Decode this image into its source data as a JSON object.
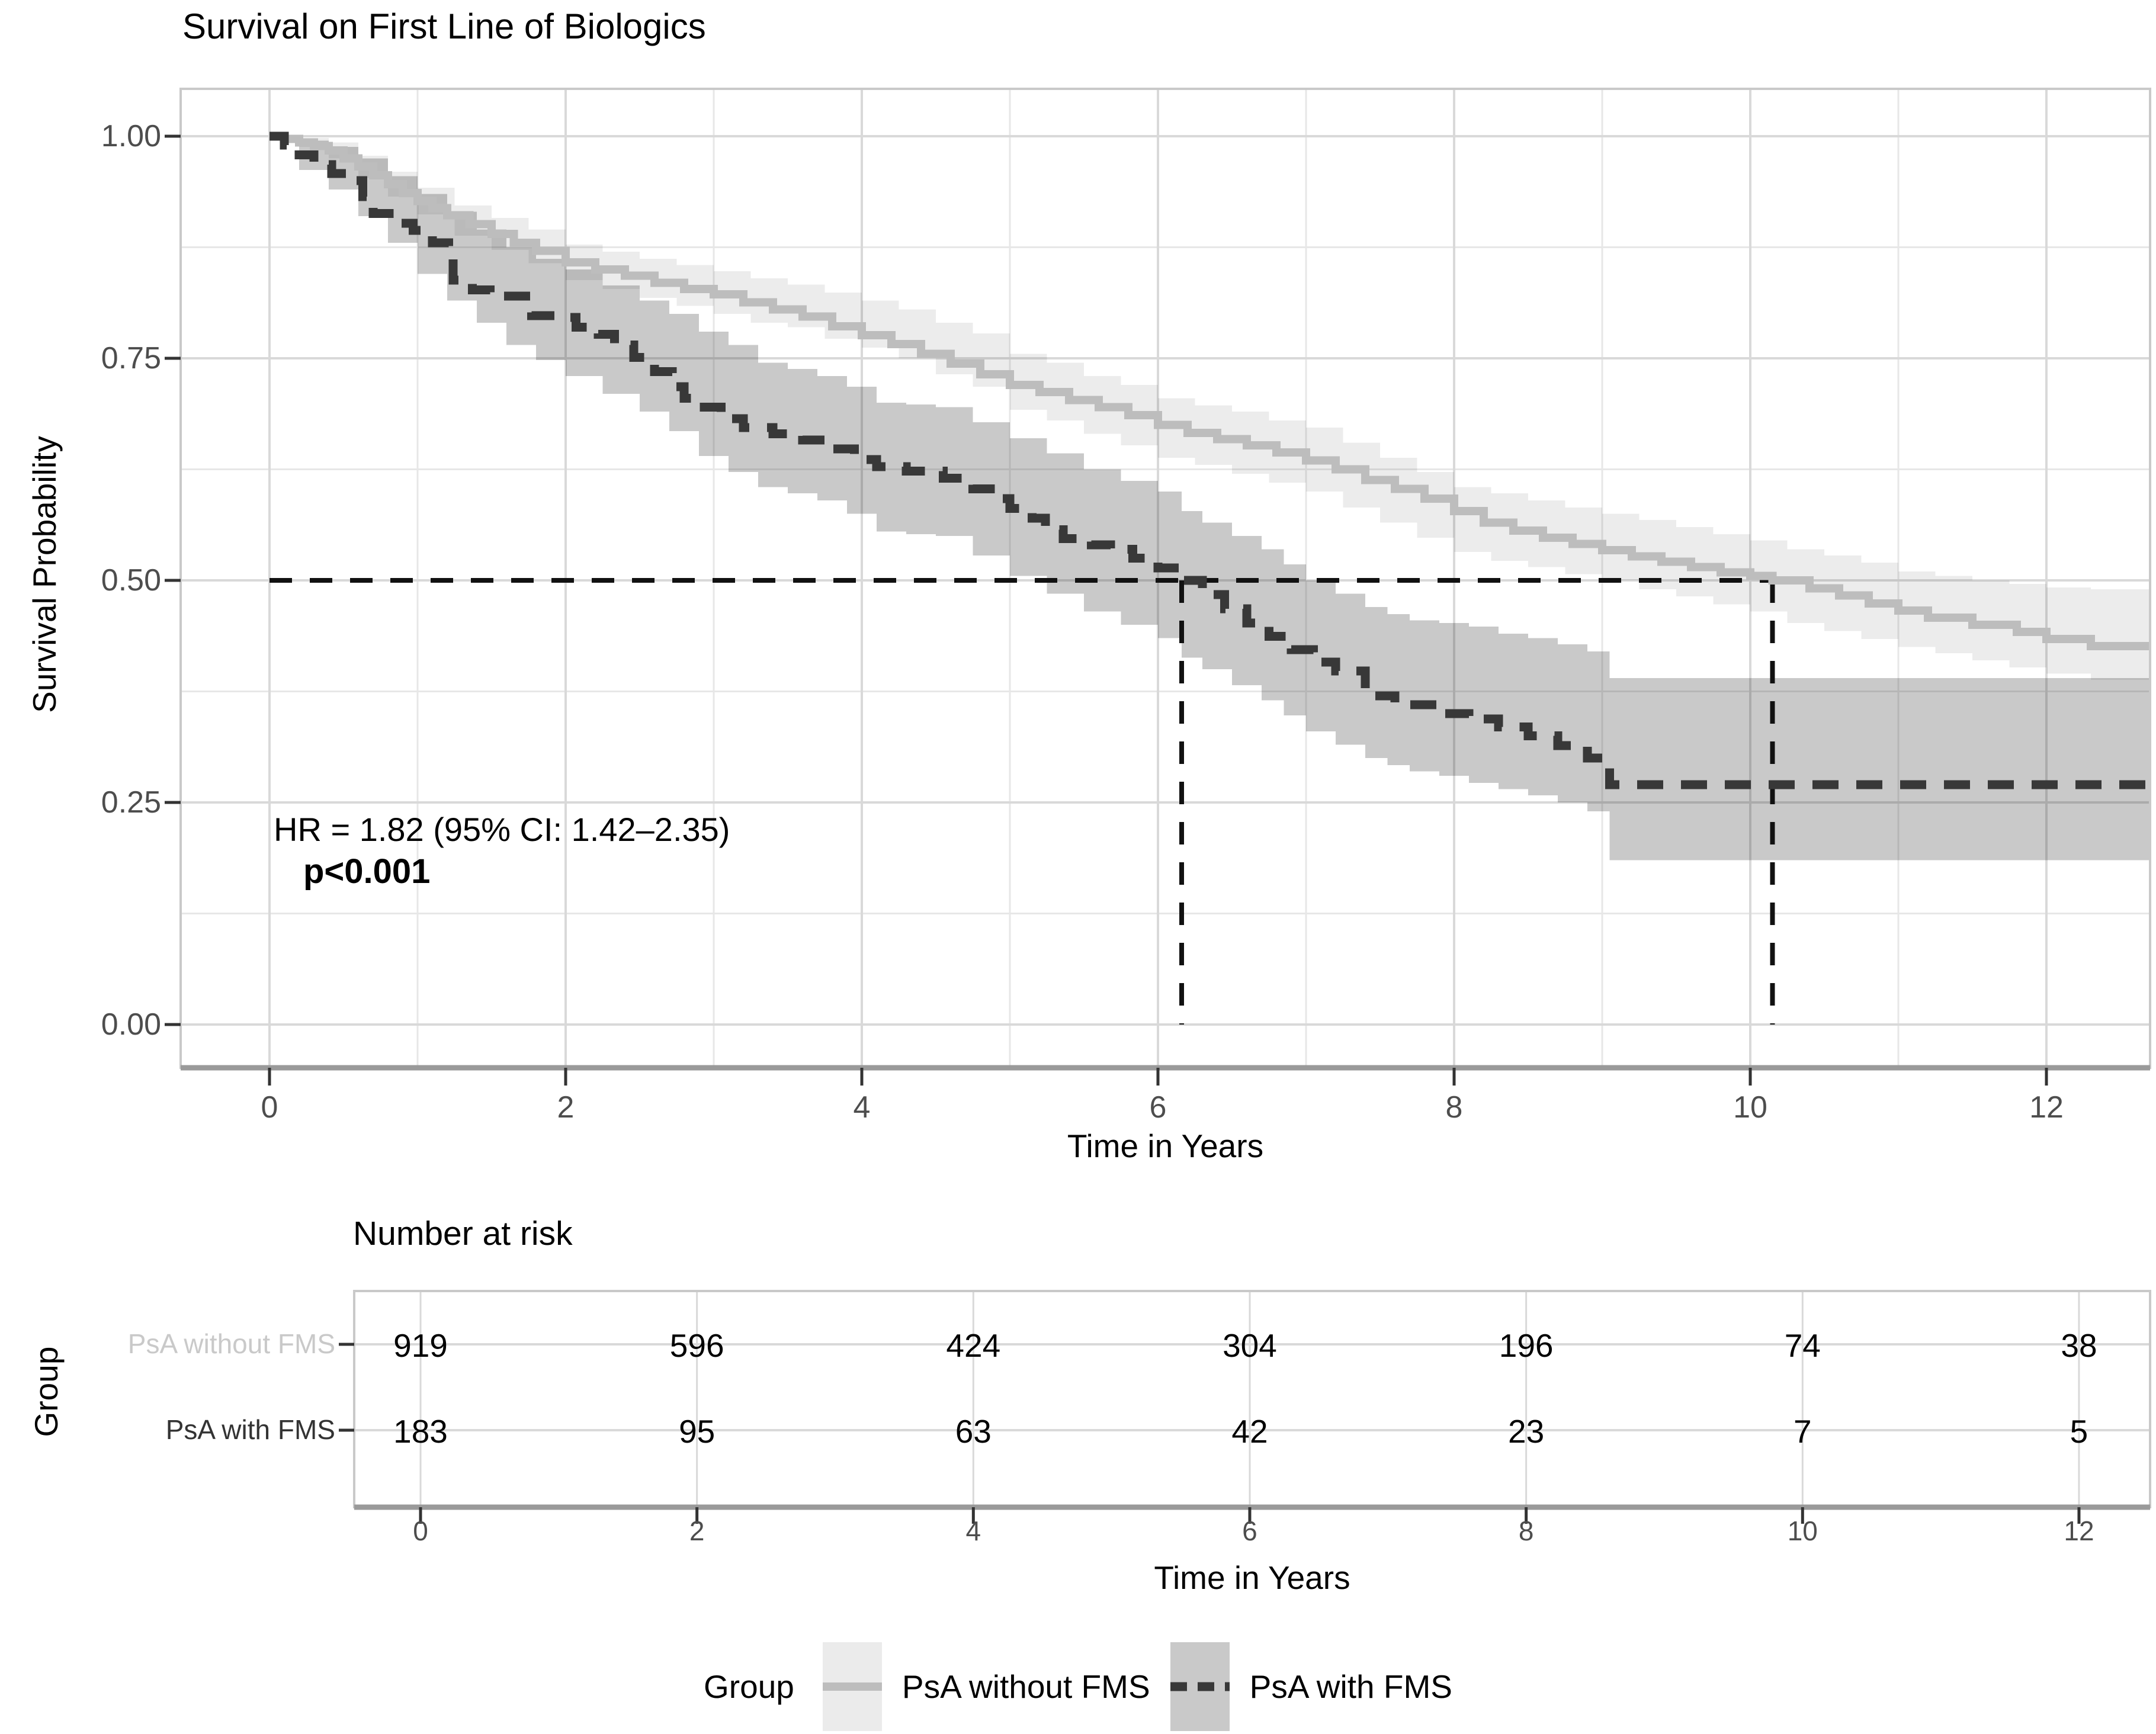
{
  "title": "Survival on First Line of Biologics",
  "axes": {
    "y_label": "Survival Probability",
    "x_label": "Time in Years",
    "y_tick_labels": [
      "1.00",
      "0.75",
      "0.50",
      "0.25",
      "0.00"
    ],
    "x_tick_labels": [
      "0",
      "2",
      "4",
      "6",
      "8",
      "10",
      "12"
    ]
  },
  "annotation": {
    "hazard_ratio": "HR = 1.82 (95% CI: 1.42–2.35)",
    "p_value": "p<0.001"
  },
  "risk_table": {
    "title": "Number at risk",
    "group_axis_label": "Group",
    "x_label": "Time in Years",
    "x_tick_labels": [
      "0",
      "2",
      "4",
      "6",
      "8",
      "10",
      "12"
    ],
    "rows": [
      {
        "label": "PsA without FMS",
        "label_color": "#c9c9c9",
        "values": [
          "919",
          "596",
          "424",
          "304",
          "196",
          "74",
          "38"
        ]
      },
      {
        "label": "PsA with FMS",
        "label_color": "#333333",
        "values": [
          "183",
          "95",
          "63",
          "42",
          "23",
          "7",
          "5"
        ]
      }
    ]
  },
  "legend": {
    "title": "Group",
    "items": [
      {
        "label": "PsA without FMS",
        "line_style": "solid"
      },
      {
        "label": "PsA with FMS",
        "line_style": "dashed"
      }
    ]
  },
  "colors": {
    "group1_line": "#bdbdbd",
    "group1_band": "#ebebeb",
    "group2_line": "#383838",
    "group2_band": "#c9c9c9",
    "grid_major": "#d9d9d9",
    "grid_minor": "#e7e7e7",
    "panel_border": "#c9c9c9",
    "axis_line": "#9a9a9a",
    "tick_label": "#4d4d4d",
    "median_line": "#111111"
  },
  "chart_data": {
    "type": "line",
    "subtype": "kaplan-meier-step",
    "title": "Survival on First Line of Biologics",
    "xlabel": "Time in Years",
    "ylabel": "Survival Probability",
    "xlim": [
      0,
      12.7
    ],
    "ylim": [
      0,
      1
    ],
    "x_ticks": [
      0,
      2,
      4,
      6,
      8,
      10,
      12
    ],
    "y_ticks": [
      0,
      0.25,
      0.5,
      0.75,
      1
    ],
    "x_minor_ticks": [
      1,
      3,
      5,
      7,
      9,
      11
    ],
    "y_minor_ticks": [
      0.125,
      0.375,
      0.625,
      0.875
    ],
    "grid": true,
    "legend_position": "bottom",
    "hazard_ratio_text": "HR = 1.82 (95% CI: 1.42–2.35)",
    "p_value_text": "p<0.001",
    "median_survival": {
      "psa_with_fms_years": 6.16,
      "psa_without_fms_years": 10.15,
      "probability": 0.5
    },
    "series": [
      {
        "name": "PsA without FMS",
        "style": "solid",
        "color": "#bdbdbd",
        "band_color": "rgba(0,0,0,0.075)",
        "steps": [
          [
            0,
            1.0
          ],
          [
            0.1,
            0.997
          ],
          [
            0.2,
            0.993
          ],
          [
            0.3,
            0.989
          ],
          [
            0.4,
            0.984
          ],
          [
            0.5,
            0.975
          ],
          [
            0.6,
            0.966
          ],
          [
            0.7,
            0.956
          ],
          [
            0.8,
            0.946
          ],
          [
            0.9,
            0.936
          ],
          [
            1.0,
            0.927
          ],
          [
            1.1,
            0.919
          ],
          [
            1.2,
            0.911
          ],
          [
            1.35,
            0.901
          ],
          [
            1.5,
            0.89
          ],
          [
            1.65,
            0.88
          ],
          [
            1.8,
            0.871
          ],
          [
            2.0,
            0.858
          ],
          [
            2.2,
            0.85
          ],
          [
            2.4,
            0.843
          ],
          [
            2.6,
            0.835
          ],
          [
            2.8,
            0.828
          ],
          [
            3.0,
            0.822
          ],
          [
            3.2,
            0.813
          ],
          [
            3.4,
            0.805
          ],
          [
            3.6,
            0.797
          ],
          [
            3.8,
            0.786
          ],
          [
            4.0,
            0.776
          ],
          [
            4.2,
            0.766
          ],
          [
            4.4,
            0.755
          ],
          [
            4.6,
            0.744
          ],
          [
            4.8,
            0.732
          ],
          [
            5.0,
            0.72
          ],
          [
            5.2,
            0.712
          ],
          [
            5.4,
            0.703
          ],
          [
            5.6,
            0.695
          ],
          [
            5.8,
            0.686
          ],
          [
            6.0,
            0.675
          ],
          [
            6.2,
            0.666
          ],
          [
            6.4,
            0.659
          ],
          [
            6.6,
            0.652
          ],
          [
            6.8,
            0.644
          ],
          [
            7.0,
            0.635
          ],
          [
            7.2,
            0.625
          ],
          [
            7.4,
            0.613
          ],
          [
            7.6,
            0.603
          ],
          [
            7.8,
            0.592
          ],
          [
            8.0,
            0.578
          ],
          [
            8.2,
            0.565
          ],
          [
            8.4,
            0.556
          ],
          [
            8.6,
            0.548
          ],
          [
            8.8,
            0.541
          ],
          [
            9.0,
            0.534
          ],
          [
            9.2,
            0.527
          ],
          [
            9.4,
            0.521
          ],
          [
            9.6,
            0.515
          ],
          [
            9.8,
            0.509
          ],
          [
            10.0,
            0.505
          ],
          [
            10.15,
            0.5
          ],
          [
            10.4,
            0.491
          ],
          [
            10.6,
            0.483
          ],
          [
            10.8,
            0.474
          ],
          [
            11.0,
            0.466
          ],
          [
            11.2,
            0.458
          ],
          [
            11.5,
            0.45
          ],
          [
            11.8,
            0.442
          ],
          [
            12.0,
            0.434
          ],
          [
            12.3,
            0.426
          ]
        ],
        "ci": [
          [
            0,
            1.0,
            1.0
          ],
          [
            0.2,
            0.998,
            0.988
          ],
          [
            0.4,
            0.993,
            0.975
          ],
          [
            0.6,
            0.978,
            0.953
          ],
          [
            0.8,
            0.96,
            0.932
          ],
          [
            1.0,
            0.942,
            0.912
          ],
          [
            1.25,
            0.922,
            0.888
          ],
          [
            1.5,
            0.908,
            0.872
          ],
          [
            1.75,
            0.895,
            0.857
          ],
          [
            2.0,
            0.878,
            0.838
          ],
          [
            2.25,
            0.87,
            0.828
          ],
          [
            2.5,
            0.862,
            0.818
          ],
          [
            2.75,
            0.855,
            0.809
          ],
          [
            3.0,
            0.848,
            0.8
          ],
          [
            3.25,
            0.84,
            0.79
          ],
          [
            3.5,
            0.833,
            0.785
          ],
          [
            3.75,
            0.824,
            0.772
          ],
          [
            4.0,
            0.815,
            0.762
          ],
          [
            4.25,
            0.805,
            0.75
          ],
          [
            4.5,
            0.79,
            0.732
          ],
          [
            4.75,
            0.778,
            0.718
          ],
          [
            5.0,
            0.755,
            0.692
          ],
          [
            5.25,
            0.745,
            0.68
          ],
          [
            5.5,
            0.73,
            0.665
          ],
          [
            5.75,
            0.72,
            0.652
          ],
          [
            6.0,
            0.705,
            0.638
          ],
          [
            6.25,
            0.697,
            0.63
          ],
          [
            6.5,
            0.69,
            0.62
          ],
          [
            6.75,
            0.68,
            0.61
          ],
          [
            7.0,
            0.672,
            0.6
          ],
          [
            7.25,
            0.655,
            0.582
          ],
          [
            7.5,
            0.638,
            0.565
          ],
          [
            7.75,
            0.622,
            0.548
          ],
          [
            8.0,
            0.605,
            0.532
          ],
          [
            8.25,
            0.598,
            0.522
          ],
          [
            8.5,
            0.59,
            0.515
          ],
          [
            8.75,
            0.582,
            0.507
          ],
          [
            9.0,
            0.575,
            0.5
          ],
          [
            9.25,
            0.568,
            0.49
          ],
          [
            9.5,
            0.56,
            0.482
          ],
          [
            9.75,
            0.552,
            0.473
          ],
          [
            10.0,
            0.545,
            0.465
          ],
          [
            10.25,
            0.535,
            0.452
          ],
          [
            10.5,
            0.528,
            0.443
          ],
          [
            10.75,
            0.52,
            0.434
          ],
          [
            11.0,
            0.51,
            0.425
          ],
          [
            11.25,
            0.505,
            0.418
          ],
          [
            11.5,
            0.5,
            0.41
          ],
          [
            11.75,
            0.496,
            0.402
          ],
          [
            12.0,
            0.492,
            0.395
          ],
          [
            12.3,
            0.49,
            0.388
          ],
          [
            12.7,
            0.49,
            0.385
          ]
        ]
      },
      {
        "name": "PsA with FMS",
        "style": "dashed",
        "color": "#383838",
        "band_color": "rgba(0,0,0,0.21)",
        "steps": [
          [
            0,
            1.0
          ],
          [
            0.1,
            0.99
          ],
          [
            0.2,
            0.979
          ],
          [
            0.3,
            0.968
          ],
          [
            0.42,
            0.958
          ],
          [
            0.53,
            0.95
          ],
          [
            0.63,
            0.932
          ],
          [
            0.7,
            0.913
          ],
          [
            0.85,
            0.902
          ],
          [
            0.97,
            0.894
          ],
          [
            1.1,
            0.88
          ],
          [
            1.21,
            0.866
          ],
          [
            1.24,
            0.838
          ],
          [
            1.37,
            0.827
          ],
          [
            1.49,
            0.82
          ],
          [
            1.77,
            0.798
          ],
          [
            1.93,
            0.796
          ],
          [
            2.07,
            0.785
          ],
          [
            2.22,
            0.777
          ],
          [
            2.33,
            0.765
          ],
          [
            2.46,
            0.751
          ],
          [
            2.6,
            0.735
          ],
          [
            2.72,
            0.718
          ],
          [
            2.8,
            0.705
          ],
          [
            2.9,
            0.695
          ],
          [
            3.05,
            0.682
          ],
          [
            3.2,
            0.672
          ],
          [
            3.4,
            0.665
          ],
          [
            3.6,
            0.658
          ],
          [
            3.8,
            0.648
          ],
          [
            3.95,
            0.636
          ],
          [
            4.1,
            0.628
          ],
          [
            4.3,
            0.623
          ],
          [
            4.55,
            0.615
          ],
          [
            4.75,
            0.603
          ],
          [
            4.9,
            0.592
          ],
          [
            5.0,
            0.581
          ],
          [
            5.15,
            0.57
          ],
          [
            5.24,
            0.557
          ],
          [
            5.36,
            0.547
          ],
          [
            5.55,
            0.54
          ],
          [
            5.68,
            0.535
          ],
          [
            5.83,
            0.525
          ],
          [
            6.0,
            0.514
          ],
          [
            6.16,
            0.5
          ],
          [
            6.3,
            0.484
          ],
          [
            6.45,
            0.468
          ],
          [
            6.6,
            0.452
          ],
          [
            6.75,
            0.437
          ],
          [
            6.9,
            0.422
          ],
          [
            7.05,
            0.408
          ],
          [
            7.2,
            0.398
          ],
          [
            7.4,
            0.37
          ],
          [
            7.6,
            0.36
          ],
          [
            7.9,
            0.35
          ],
          [
            8.1,
            0.344
          ],
          [
            8.3,
            0.335
          ],
          [
            8.5,
            0.325
          ],
          [
            8.7,
            0.314
          ],
          [
            8.9,
            0.3
          ],
          [
            9.05,
            0.27
          ]
        ],
        "ci": [
          [
            0,
            1.0,
            1.0
          ],
          [
            0.2,
            0.995,
            0.962
          ],
          [
            0.4,
            0.988,
            0.94
          ],
          [
            0.6,
            0.975,
            0.91
          ],
          [
            0.8,
            0.955,
            0.88
          ],
          [
            1.0,
            0.935,
            0.845
          ],
          [
            1.2,
            0.915,
            0.815
          ],
          [
            1.4,
            0.895,
            0.79
          ],
          [
            1.6,
            0.875,
            0.765
          ],
          [
            1.8,
            0.862,
            0.748
          ],
          [
            2.0,
            0.85,
            0.73
          ],
          [
            2.25,
            0.832,
            0.71
          ],
          [
            2.5,
            0.815,
            0.69
          ],
          [
            2.7,
            0.8,
            0.668
          ],
          [
            2.9,
            0.78,
            0.64
          ],
          [
            3.1,
            0.765,
            0.622
          ],
          [
            3.3,
            0.745,
            0.605
          ],
          [
            3.5,
            0.738,
            0.598
          ],
          [
            3.7,
            0.73,
            0.59
          ],
          [
            3.9,
            0.718,
            0.575
          ],
          [
            4.1,
            0.7,
            0.555
          ],
          [
            4.3,
            0.698,
            0.552
          ],
          [
            4.5,
            0.695,
            0.55
          ],
          [
            4.75,
            0.678,
            0.528
          ],
          [
            5.0,
            0.66,
            0.505
          ],
          [
            5.25,
            0.643,
            0.485
          ],
          [
            5.5,
            0.625,
            0.465
          ],
          [
            5.75,
            0.612,
            0.45
          ],
          [
            6.0,
            0.6,
            0.435
          ],
          [
            6.16,
            0.578,
            0.413
          ],
          [
            6.3,
            0.565,
            0.4
          ],
          [
            6.5,
            0.55,
            0.382
          ],
          [
            6.7,
            0.535,
            0.365
          ],
          [
            6.85,
            0.518,
            0.348
          ],
          [
            7.0,
            0.5,
            0.33
          ],
          [
            7.2,
            0.485,
            0.315
          ],
          [
            7.4,
            0.47,
            0.3
          ],
          [
            7.55,
            0.462,
            0.292
          ],
          [
            7.7,
            0.455,
            0.285
          ],
          [
            7.9,
            0.452,
            0.28
          ],
          [
            8.1,
            0.448,
            0.272
          ],
          [
            8.3,
            0.44,
            0.265
          ],
          [
            8.5,
            0.435,
            0.258
          ],
          [
            8.7,
            0.428,
            0.25
          ],
          [
            8.9,
            0.42,
            0.24
          ],
          [
            9.05,
            0.39,
            0.185
          ],
          [
            12.7,
            0.39,
            0.185
          ]
        ]
      }
    ],
    "risk_table": {
      "title": "Number at risk",
      "group_label": "Group",
      "times": [
        0,
        2,
        4,
        6,
        8,
        10,
        12
      ],
      "rows": [
        {
          "name": "PsA without FMS",
          "values": [
            919,
            596,
            424,
            304,
            196,
            74,
            38
          ]
        },
        {
          "name": "PsA with FMS",
          "values": [
            183,
            95,
            63,
            42,
            23,
            7,
            5
          ]
        }
      ]
    }
  }
}
